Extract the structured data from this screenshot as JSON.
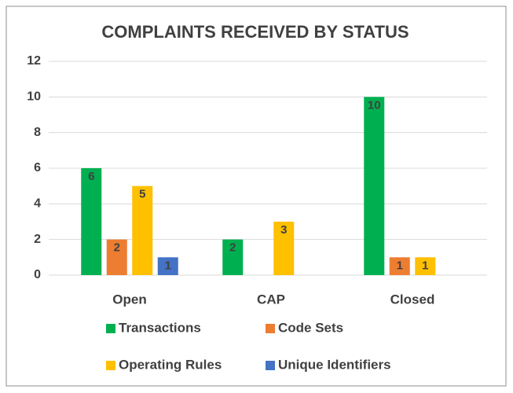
{
  "chart_data": {
    "type": "bar",
    "title": "COMPLAINTS RECEIVED BY STATUS",
    "categories": [
      "Open",
      "CAP",
      "Closed"
    ],
    "series": [
      {
        "name": "Transactions",
        "color": "#00b050",
        "values": [
          6,
          2,
          10
        ]
      },
      {
        "name": "Code Sets",
        "color": "#ed7d31",
        "values": [
          2,
          0,
          1
        ]
      },
      {
        "name": "Operating Rules",
        "color": "#ffc000",
        "values": [
          5,
          3,
          1
        ]
      },
      {
        "name": "Unique Identifiers",
        "color": "#4472c4",
        "values": [
          1,
          0,
          0
        ]
      }
    ],
    "ylim": [
      0,
      12
    ],
    "yticks": [
      0,
      2,
      4,
      6,
      8,
      10,
      12
    ],
    "grid": true,
    "legend": "bottom"
  }
}
